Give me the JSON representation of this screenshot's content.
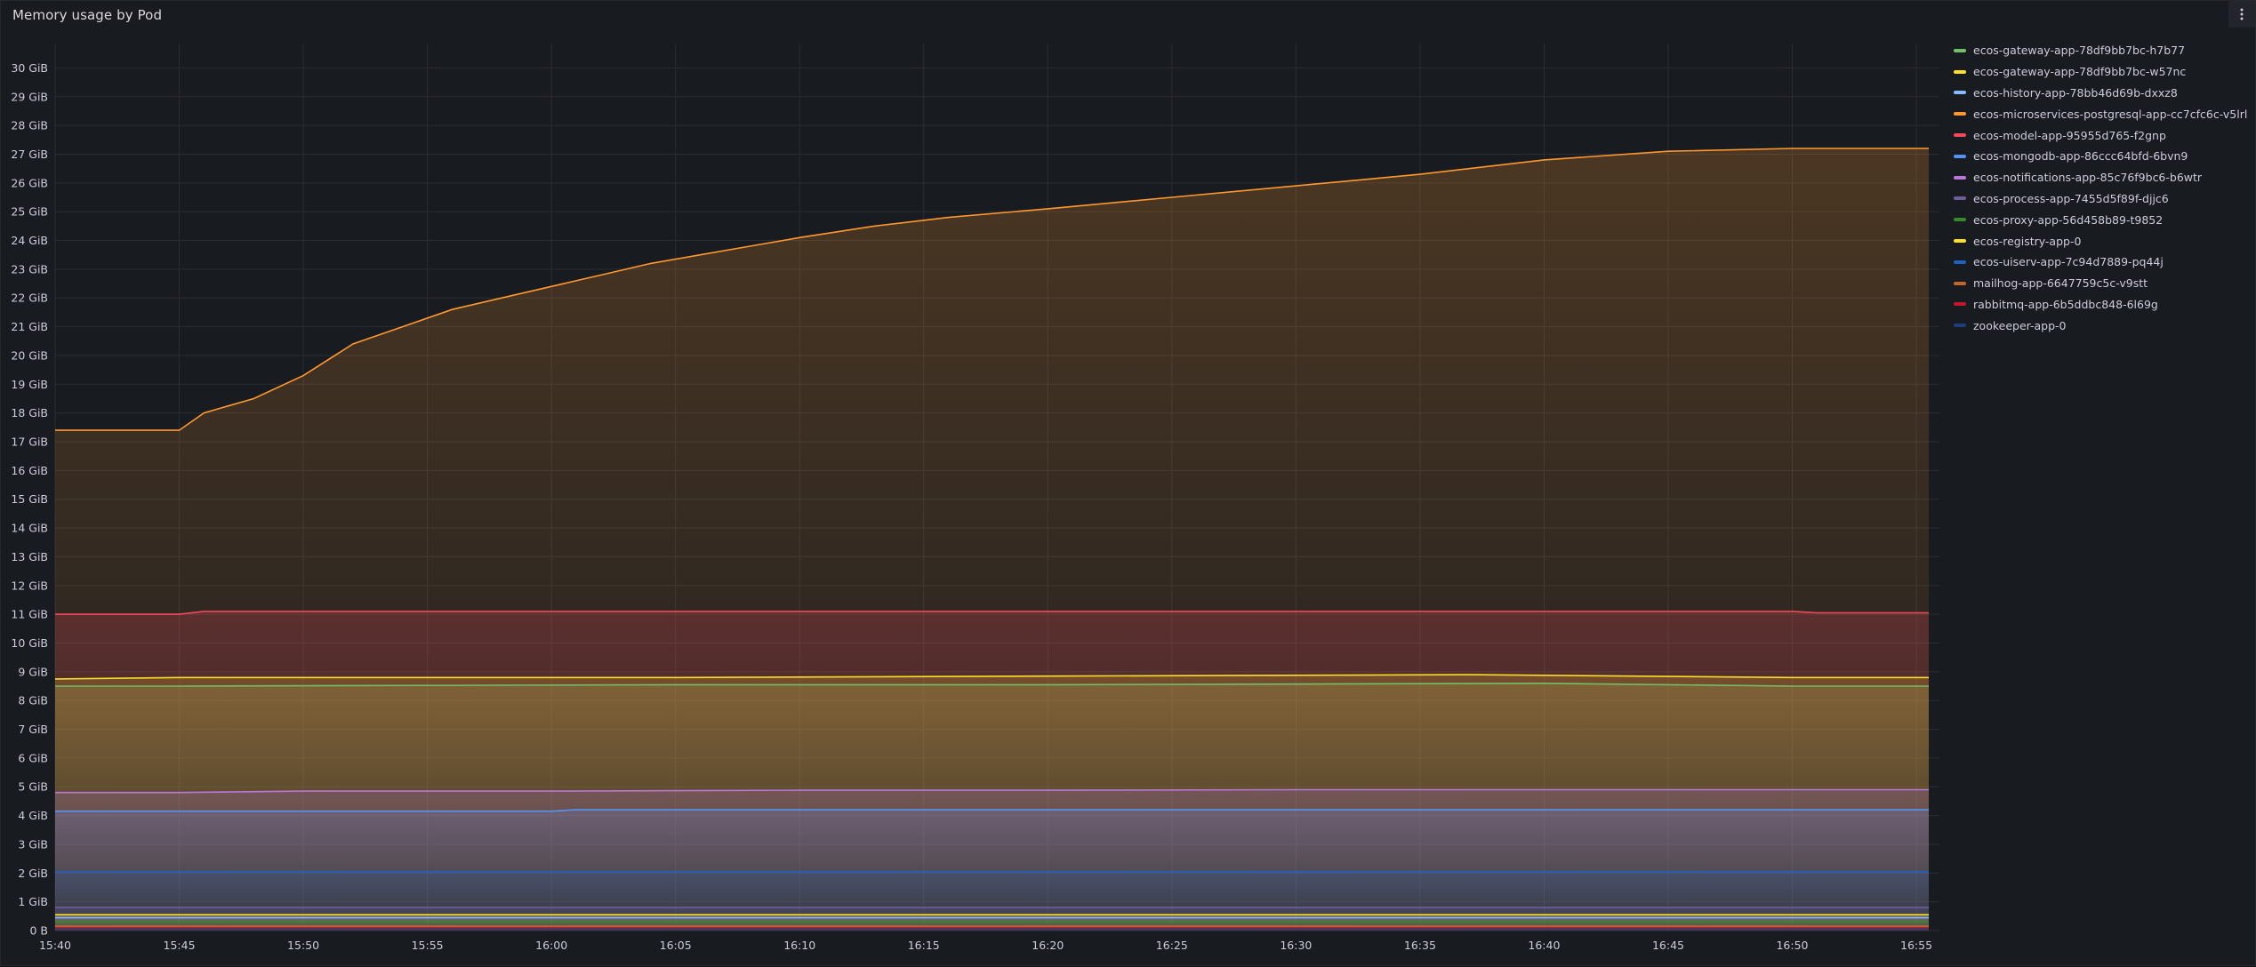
{
  "panel": {
    "title": "Memory usage by Pod",
    "menu_icon": "kebab-vertical-icon"
  },
  "chart_data": {
    "type": "area",
    "ylabel": "",
    "xlabel": "",
    "ylim": [
      0,
      30.6
    ],
    "y_ticks": [
      "0 B",
      "1 GiB",
      "2 GiB",
      "3 GiB",
      "4 GiB",
      "5 GiB",
      "6 GiB",
      "7 GiB",
      "8 GiB",
      "9 GiB",
      "10 GiB",
      "11 GiB",
      "12 GiB",
      "13 GiB",
      "14 GiB",
      "15 GiB",
      "16 GiB",
      "17 GiB",
      "18 GiB",
      "19 GiB",
      "20 GiB",
      "21 GiB",
      "22 GiB",
      "23 GiB",
      "24 GiB",
      "25 GiB",
      "26 GiB",
      "27 GiB",
      "28 GiB",
      "29 GiB",
      "30 GiB"
    ],
    "x_ticks": [
      "15:40",
      "15:45",
      "15:50",
      "15:55",
      "16:00",
      "16:05",
      "16:10",
      "16:15",
      "16:20",
      "16:25",
      "16:30",
      "16:35",
      "16:40",
      "16:45",
      "16:50",
      "16:55"
    ],
    "x_range_minutes_after_15_40": [
      0,
      75.5
    ],
    "grid": true,
    "legend_placement": "right",
    "series": [
      {
        "name": "ecos-gateway-app-78df9bb7bc-h7b77",
        "color": "#73bf69",
        "x": [
          0,
          5,
          25,
          40,
          60,
          70,
          75.5
        ],
        "values": [
          8.5,
          8.5,
          8.55,
          8.55,
          8.6,
          8.5,
          8.5
        ]
      },
      {
        "name": "ecos-gateway-app-78df9bb7bc-w57nc",
        "color": "#fade2a",
        "x": [
          0,
          5,
          25,
          40,
          57,
          70,
          75.5
        ],
        "values": [
          8.75,
          8.8,
          8.8,
          8.85,
          8.9,
          8.8,
          8.8
        ]
      },
      {
        "name": "ecos-history-app-78bb46d69b-dxxz8",
        "color": "#8ab8ff",
        "x": [
          0,
          75.5
        ],
        "values": [
          0.45,
          0.45
        ]
      },
      {
        "name": "ecos-microservices-postgresql-app-cc7cfc6c-v5lrl",
        "color": "#ff9830",
        "x": [
          0,
          5,
          6,
          8,
          10,
          12,
          14,
          16,
          18,
          20,
          22,
          24,
          26,
          28,
          30,
          33,
          36,
          40,
          45,
          50,
          55,
          60,
          65,
          70,
          75.5
        ],
        "values": [
          17.4,
          17.4,
          18.0,
          18.5,
          19.3,
          20.4,
          21.0,
          21.6,
          22.0,
          22.4,
          22.8,
          23.2,
          23.5,
          23.8,
          24.1,
          24.5,
          24.8,
          25.1,
          25.5,
          25.9,
          26.3,
          26.8,
          27.1,
          27.2,
          27.2
        ]
      },
      {
        "name": "ecos-model-app-95955d765-f2gnp",
        "color": "#f2495c",
        "x": [
          0,
          5,
          6,
          70,
          71,
          75.5
        ],
        "values": [
          11.0,
          11.0,
          11.1,
          11.1,
          11.05,
          11.05
        ]
      },
      {
        "name": "ecos-mongodb-app-86ccc64bfd-6bvn9",
        "color": "#5794f2",
        "x": [
          0,
          5,
          20,
          21,
          75.5
        ],
        "values": [
          4.15,
          4.15,
          4.15,
          4.2,
          4.2
        ]
      },
      {
        "name": "ecos-notifications-app-85c76f9bc6-b6wtr",
        "color": "#b877d9",
        "x": [
          0,
          5,
          10,
          20,
          30,
          40,
          50,
          60,
          70,
          75.5
        ],
        "values": [
          4.8,
          4.8,
          4.85,
          4.85,
          4.88,
          4.88,
          4.9,
          4.9,
          4.9,
          4.9
        ]
      },
      {
        "name": "ecos-process-app-7455d5f89f-djjc6",
        "color": "#705da0",
        "x": [
          0,
          75.5
        ],
        "values": [
          0.8,
          0.8
        ]
      },
      {
        "name": "ecos-proxy-app-56d458b89-t9852",
        "color": "#37872d",
        "x": [
          0,
          75.5
        ],
        "values": [
          0.3,
          0.3
        ]
      },
      {
        "name": "ecos-registry-app-0",
        "color": "#fade2a",
        "x": [
          0,
          75.5
        ],
        "values": [
          0.55,
          0.55
        ]
      },
      {
        "name": "ecos-uiserv-app-7c94d7889-pq44j",
        "color": "#1f60c4",
        "x": [
          0,
          75.5
        ],
        "values": [
          2.05,
          2.05
        ]
      },
      {
        "name": "mailhog-app-6647759c5c-v9stt",
        "color": "#c4662c",
        "x": [
          0,
          75.5
        ],
        "values": [
          0.15,
          0.15
        ]
      },
      {
        "name": "rabbitmq-app-6b5ddbc848-6l69g",
        "color": "#c4162a",
        "x": [
          0,
          75.5
        ],
        "values": [
          0.1,
          0.1
        ]
      },
      {
        "name": "zookeeper-app-0",
        "color": "#1f3d7a",
        "x": [
          0,
          75.5
        ],
        "values": [
          0.05,
          0.05
        ]
      }
    ]
  }
}
